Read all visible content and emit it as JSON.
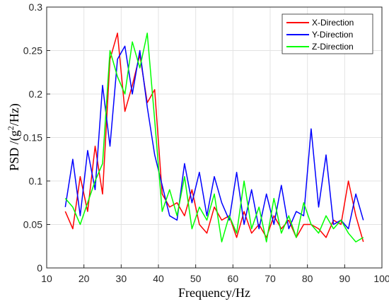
{
  "chart_data": {
    "type": "line",
    "xlabel": "Frequency/Hz",
    "ylabel_prefix": "PSD /(g",
    "ylabel_sup": "2",
    "ylabel_suffix": "/Hz)",
    "xlim": [
      10,
      100
    ],
    "ylim": [
      0,
      0.3
    ],
    "xticks": [
      10,
      20,
      30,
      40,
      50,
      60,
      70,
      80,
      90,
      100
    ],
    "yticks": [
      0,
      0.05,
      0.1,
      0.15,
      0.2,
      0.25,
      0.3
    ],
    "xtick_labels": [
      "10",
      "20",
      "30",
      "40",
      "50",
      "60",
      "70",
      "80",
      "90",
      "100"
    ],
    "ytick_labels": [
      "0",
      "0.05",
      "0.1",
      "0.15",
      "0.2",
      "0.25",
      "0.3"
    ],
    "grid": true,
    "legend_position": "top-right",
    "x": [
      15,
      17,
      19,
      21,
      23,
      25,
      27,
      29,
      31,
      33,
      35,
      37,
      39,
      41,
      43,
      45,
      47,
      49,
      51,
      53,
      55,
      57,
      59,
      61,
      63,
      65,
      67,
      69,
      71,
      73,
      75,
      77,
      79,
      81,
      83,
      85,
      87,
      89,
      91,
      93,
      95
    ],
    "series": [
      {
        "name": "X-Direction",
        "color": "#ff0000",
        "values": [
          0.065,
          0.045,
          0.105,
          0.065,
          0.14,
          0.085,
          0.24,
          0.27,
          0.18,
          0.21,
          0.245,
          0.19,
          0.205,
          0.085,
          0.07,
          0.075,
          0.06,
          0.09,
          0.05,
          0.04,
          0.07,
          0.055,
          0.06,
          0.035,
          0.065,
          0.04,
          0.05,
          0.035,
          0.06,
          0.045,
          0.055,
          0.035,
          0.05,
          0.05,
          0.045,
          0.035,
          0.055,
          0.05,
          0.1,
          0.06,
          0.03
        ]
      },
      {
        "name": "Y-Direction",
        "color": "#0000ff",
        "values": [
          0.07,
          0.125,
          0.06,
          0.135,
          0.09,
          0.21,
          0.14,
          0.24,
          0.255,
          0.2,
          0.25,
          0.185,
          0.13,
          0.095,
          0.06,
          0.055,
          0.12,
          0.075,
          0.11,
          0.06,
          0.105,
          0.075,
          0.055,
          0.11,
          0.05,
          0.09,
          0.045,
          0.085,
          0.05,
          0.095,
          0.045,
          0.065,
          0.06,
          0.16,
          0.07,
          0.13,
          0.05,
          0.055,
          0.045,
          0.085,
          0.055
        ]
      },
      {
        "name": "Z-Direction",
        "color": "#00ff00",
        "values": [
          0.08,
          0.07,
          0.05,
          0.075,
          0.1,
          0.12,
          0.25,
          0.22,
          0.2,
          0.26,
          0.23,
          0.27,
          0.17,
          0.065,
          0.09,
          0.06,
          0.105,
          0.045,
          0.07,
          0.055,
          0.085,
          0.03,
          0.06,
          0.04,
          0.1,
          0.045,
          0.07,
          0.03,
          0.08,
          0.04,
          0.06,
          0.035,
          0.075,
          0.05,
          0.04,
          0.06,
          0.045,
          0.055,
          0.04,
          0.03,
          0.035
        ]
      }
    ]
  }
}
